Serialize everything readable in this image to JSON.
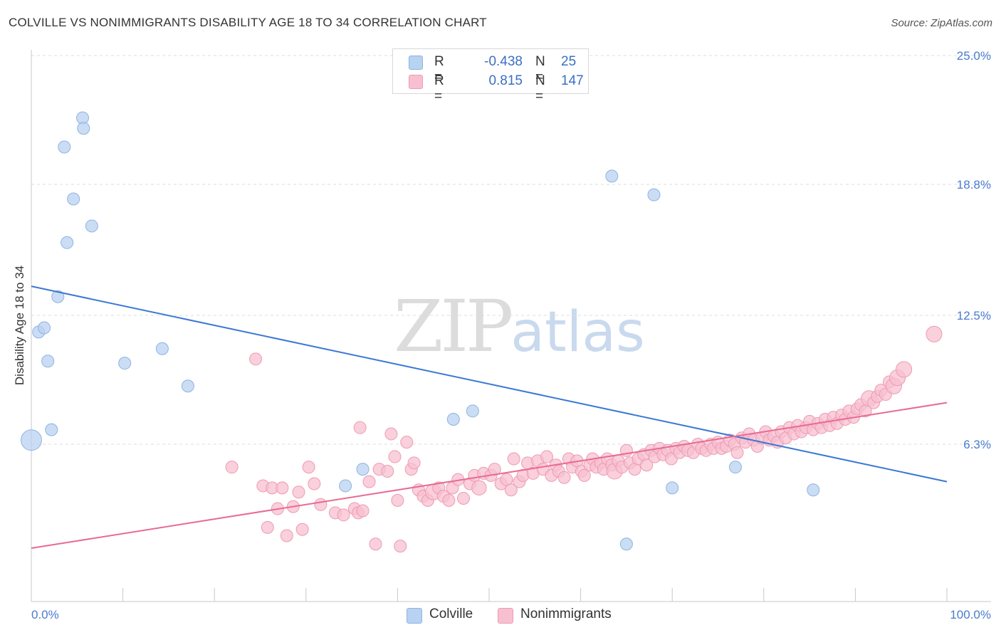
{
  "header": {
    "title": "COLVILLE VS NONIMMIGRANTS DISABILITY AGE 18 TO 34 CORRELATION CHART",
    "source": "Source: ZipAtlas.com"
  },
  "watermark": {
    "zip": "ZIP",
    "atlas": "atlas"
  },
  "legend": {
    "rows": [
      {
        "r_label": "R =",
        "r_value": "-0.438",
        "n_label": "N =",
        "n_value": "25"
      },
      {
        "r_label": "R =",
        "r_value": "0.815",
        "n_label": "N =",
        "n_value": "147"
      }
    ],
    "bottom": [
      "Colville",
      "Nonimmigrants"
    ]
  },
  "colors": {
    "colville_fill": "#b8d2f2",
    "colville_stroke": "#8fb3e0",
    "colville_line": "#3b78d4",
    "nonimm_fill": "#f7c0d0",
    "nonimm_stroke": "#ee9ab3",
    "nonimm_line": "#e86a93",
    "tick_text": "#4a7bd0",
    "grid": "#dddddd"
  },
  "chart_data": {
    "type": "scatter",
    "title": "COLVILLE VS NONIMMIGRANTS DISABILITY AGE 18 TO 34 CORRELATION CHART",
    "xlabel": "",
    "ylabel": "Disability Age 18 to 34",
    "xlim": [
      0,
      100
    ],
    "ylim": [
      0,
      25
    ],
    "x_tick_labels": [
      "0.0%",
      "100.0%"
    ],
    "y_ticks": [
      6.3,
      12.5,
      18.8,
      25.0
    ],
    "y_tick_labels": [
      "6.3%",
      "12.5%",
      "18.8%",
      "25.0%"
    ],
    "grid": true,
    "legend_position": "top-center",
    "series": [
      {
        "name": "Colville",
        "r": -0.438,
        "n": 25,
        "trend": {
          "x": [
            0,
            100
          ],
          "y": [
            13.9,
            4.5
          ]
        },
        "points": [
          [
            0.0,
            6.5,
            1.7
          ],
          [
            0.8,
            11.7,
            1
          ],
          [
            1.4,
            11.9,
            1
          ],
          [
            1.8,
            10.3,
            1
          ],
          [
            2.2,
            7.0,
            1
          ],
          [
            2.9,
            13.4,
            1
          ],
          [
            3.6,
            20.6,
            1
          ],
          [
            3.9,
            16.0,
            1
          ],
          [
            4.6,
            18.1,
            1
          ],
          [
            5.6,
            22.0,
            1
          ],
          [
            5.7,
            21.5,
            1
          ],
          [
            6.6,
            16.8,
            1
          ],
          [
            10.2,
            10.2,
            1
          ],
          [
            14.3,
            10.9,
            1
          ],
          [
            17.1,
            9.1,
            1
          ],
          [
            34.3,
            4.3,
            1
          ],
          [
            36.2,
            5.1,
            1
          ],
          [
            46.1,
            7.5,
            1
          ],
          [
            48.2,
            7.9,
            1
          ],
          [
            63.4,
            19.2,
            1
          ],
          [
            65.0,
            1.5,
            1
          ],
          [
            68.0,
            18.3,
            1
          ],
          [
            70.0,
            4.2,
            1
          ],
          [
            76.9,
            5.2,
            1
          ],
          [
            85.4,
            4.1,
            1
          ]
        ]
      },
      {
        "name": "Nonimmigrants",
        "r": 0.815,
        "n": 147,
        "trend": {
          "x": [
            0,
            100
          ],
          "y": [
            1.3,
            8.3
          ]
        },
        "points": [
          [
            21.9,
            5.2,
            1
          ],
          [
            24.5,
            10.4,
            1
          ],
          [
            25.3,
            4.3,
            1
          ],
          [
            25.8,
            2.3,
            1
          ],
          [
            26.3,
            4.2,
            1
          ],
          [
            26.9,
            3.2,
            1
          ],
          [
            27.4,
            4.2,
            1
          ],
          [
            27.9,
            1.9,
            1
          ],
          [
            28.6,
            3.3,
            1
          ],
          [
            29.2,
            4.0,
            1
          ],
          [
            29.6,
            2.2,
            1
          ],
          [
            30.3,
            5.2,
            1
          ],
          [
            30.9,
            4.4,
            1
          ],
          [
            31.6,
            3.4,
            1
          ],
          [
            33.2,
            3.0,
            1
          ],
          [
            34.1,
            2.9,
            1
          ],
          [
            35.3,
            3.2,
            1
          ],
          [
            35.7,
            3.0,
            1
          ],
          [
            35.9,
            7.1,
            1
          ],
          [
            36.2,
            3.1,
            1
          ],
          [
            36.9,
            4.5,
            1
          ],
          [
            37.6,
            1.5,
            1
          ],
          [
            38.0,
            5.1,
            1
          ],
          [
            38.9,
            5.0,
            1
          ],
          [
            39.3,
            6.8,
            1
          ],
          [
            39.7,
            5.7,
            1
          ],
          [
            40.0,
            3.6,
            1
          ],
          [
            40.3,
            1.4,
            1
          ],
          [
            41.0,
            6.4,
            1
          ],
          [
            41.5,
            5.1,
            1
          ],
          [
            41.8,
            5.4,
            1
          ],
          [
            42.3,
            4.1,
            1
          ],
          [
            42.8,
            3.8,
            1
          ],
          [
            43.3,
            3.6,
            1
          ],
          [
            43.9,
            4.0,
            1.3
          ],
          [
            44.5,
            4.2,
            1
          ],
          [
            45.0,
            3.8,
            1
          ],
          [
            45.6,
            3.6,
            1
          ],
          [
            46.0,
            4.2,
            1
          ],
          [
            46.6,
            4.6,
            1
          ],
          [
            47.2,
            3.7,
            1
          ],
          [
            47.9,
            4.4,
            1
          ],
          [
            48.4,
            4.8,
            1
          ],
          [
            48.9,
            4.2,
            1.2
          ],
          [
            49.4,
            4.9,
            1
          ],
          [
            50.2,
            4.8,
            1
          ],
          [
            50.6,
            5.1,
            1
          ],
          [
            51.3,
            4.4,
            1
          ],
          [
            51.9,
            4.6,
            1
          ],
          [
            52.4,
            4.1,
            1
          ],
          [
            52.7,
            5.6,
            1
          ],
          [
            53.3,
            4.5,
            1
          ],
          [
            53.7,
            4.8,
            1
          ],
          [
            54.2,
            5.4,
            1
          ],
          [
            54.8,
            4.9,
            1
          ],
          [
            55.3,
            5.5,
            1
          ],
          [
            55.9,
            5.1,
            1
          ],
          [
            56.3,
            5.7,
            1
          ],
          [
            56.8,
            4.8,
            1
          ],
          [
            57.3,
            5.3,
            1
          ],
          [
            57.6,
            5.0,
            1
          ],
          [
            58.2,
            4.7,
            1
          ],
          [
            58.7,
            5.6,
            1
          ],
          [
            59.1,
            5.2,
            1
          ],
          [
            59.6,
            5.5,
            1
          ],
          [
            60.1,
            5.0,
            1
          ],
          [
            60.4,
            4.8,
            1
          ],
          [
            61.0,
            5.3,
            1
          ],
          [
            61.3,
            5.6,
            1
          ],
          [
            61.7,
            5.2,
            1
          ],
          [
            62.2,
            5.4,
            1
          ],
          [
            62.5,
            5.1,
            1
          ],
          [
            62.9,
            5.6,
            1
          ],
          [
            63.4,
            5.3,
            1
          ],
          [
            63.7,
            5.0,
            1.3
          ],
          [
            64.1,
            5.5,
            1
          ],
          [
            64.5,
            5.2,
            1
          ],
          [
            65.0,
            6.0,
            1
          ],
          [
            65.4,
            5.4,
            1
          ],
          [
            65.9,
            5.1,
            1
          ],
          [
            66.3,
            5.6,
            1
          ],
          [
            66.9,
            5.8,
            1
          ],
          [
            67.2,
            5.3,
            1
          ],
          [
            67.7,
            6.0,
            1
          ],
          [
            68.1,
            5.7,
            1
          ],
          [
            68.6,
            6.1,
            1
          ],
          [
            69.0,
            5.8,
            1
          ],
          [
            69.5,
            6.0,
            1
          ],
          [
            69.9,
            5.6,
            1
          ],
          [
            70.4,
            6.1,
            1
          ],
          [
            70.8,
            5.9,
            1
          ],
          [
            71.3,
            6.2,
            1
          ],
          [
            71.7,
            6.0,
            1
          ],
          [
            72.3,
            5.9,
            1
          ],
          [
            72.8,
            6.3,
            1
          ],
          [
            73.2,
            6.1,
            1
          ],
          [
            73.7,
            6.0,
            1
          ],
          [
            74.2,
            6.3,
            1
          ],
          [
            74.5,
            6.1,
            1
          ],
          [
            75.0,
            6.4,
            1
          ],
          [
            75.4,
            6.1,
            1
          ],
          [
            75.9,
            6.2,
            1
          ],
          [
            76.3,
            6.5,
            1
          ],
          [
            76.8,
            6.3,
            1
          ],
          [
            77.1,
            5.9,
            1
          ],
          [
            77.6,
            6.6,
            1
          ],
          [
            78.0,
            6.4,
            1
          ],
          [
            78.4,
            6.8,
            1
          ],
          [
            78.9,
            6.5,
            1
          ],
          [
            79.3,
            6.2,
            1
          ],
          [
            79.8,
            6.6,
            1
          ],
          [
            80.2,
            6.9,
            1
          ],
          [
            80.6,
            6.5,
            1
          ],
          [
            81.1,
            6.7,
            1
          ],
          [
            81.5,
            6.4,
            1
          ],
          [
            81.9,
            6.9,
            1
          ],
          [
            82.4,
            6.6,
            1
          ],
          [
            82.8,
            7.1,
            1
          ],
          [
            83.3,
            6.8,
            1
          ],
          [
            83.7,
            7.2,
            1
          ],
          [
            84.1,
            6.9,
            1
          ],
          [
            84.6,
            7.1,
            1
          ],
          [
            85.0,
            7.4,
            1
          ],
          [
            85.4,
            7.0,
            1
          ],
          [
            85.9,
            7.3,
            1
          ],
          [
            86.3,
            7.1,
            1
          ],
          [
            86.7,
            7.5,
            1
          ],
          [
            87.2,
            7.2,
            1
          ],
          [
            87.6,
            7.6,
            1
          ],
          [
            88.0,
            7.3,
            1
          ],
          [
            88.5,
            7.7,
            1
          ],
          [
            88.9,
            7.5,
            1
          ],
          [
            89.3,
            7.9,
            1
          ],
          [
            89.8,
            7.6,
            1
          ],
          [
            90.2,
            8.0,
            1
          ],
          [
            90.6,
            8.2,
            1
          ],
          [
            91.1,
            7.9,
            1
          ],
          [
            91.5,
            8.5,
            1.3
          ],
          [
            92.0,
            8.3,
            1
          ],
          [
            92.4,
            8.6,
            1
          ],
          [
            92.8,
            8.9,
            1
          ],
          [
            93.3,
            8.7,
            1
          ],
          [
            93.7,
            9.3,
            1
          ],
          [
            94.2,
            9.1,
            1.3
          ],
          [
            94.6,
            9.5,
            1.3
          ],
          [
            95.3,
            9.9,
            1.3
          ],
          [
            98.6,
            11.6,
            1.3
          ]
        ]
      }
    ]
  }
}
